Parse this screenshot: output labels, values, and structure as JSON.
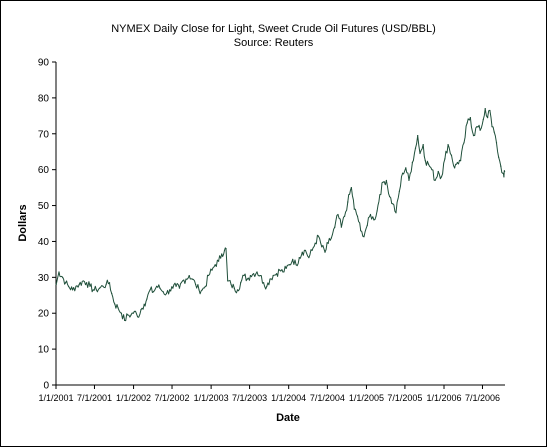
{
  "chart_data": {
    "type": "line",
    "title": "NYMEX Daily Close for Light, Sweet Crude Oil Futures (USD/BBL)",
    "subtitle": "Source: Reuters",
    "xlabel": "Date",
    "ylabel": "Dollars",
    "ylim": [
      0,
      90
    ],
    "xlim": [
      "2001-01-01",
      "2006-10-15"
    ],
    "y_ticks": [
      0,
      10,
      20,
      30,
      40,
      50,
      60,
      70,
      80,
      90
    ],
    "x_ticks": [
      {
        "date": "2001-01-01",
        "label": "1/1/2001"
      },
      {
        "date": "2001-07-01",
        "label": "7/1/2001"
      },
      {
        "date": "2002-01-01",
        "label": "1/1/2002"
      },
      {
        "date": "2002-07-01",
        "label": "7/1/2002"
      },
      {
        "date": "2003-01-01",
        "label": "1/1/2003"
      },
      {
        "date": "2003-07-01",
        "label": "7/1/2003"
      },
      {
        "date": "2004-01-01",
        "label": "1/1/2004"
      },
      {
        "date": "2004-07-01",
        "label": "7/1/2004"
      },
      {
        "date": "2005-01-01",
        "label": "1/1/2005"
      },
      {
        "date": "2005-07-01",
        "label": "7/1/2005"
      },
      {
        "date": "2006-01-01",
        "label": "1/1/2006"
      },
      {
        "date": "2006-07-01",
        "label": "7/1/2006"
      }
    ],
    "grid": false,
    "legend": "none",
    "series": [
      {
        "color": "#1f4f3a",
        "points": [
          [
            "2001-01-02",
            28.0
          ],
          [
            "2001-01-15",
            31.5
          ],
          [
            "2001-02-01",
            30.0
          ],
          [
            "2001-02-15",
            28.5
          ],
          [
            "2001-03-01",
            27.5
          ],
          [
            "2001-03-20",
            26.5
          ],
          [
            "2001-04-05",
            27.5
          ],
          [
            "2001-04-20",
            28.0
          ],
          [
            "2001-05-10",
            29.0
          ],
          [
            "2001-05-25",
            28.5
          ],
          [
            "2001-06-10",
            27.5
          ],
          [
            "2001-06-25",
            26.5
          ],
          [
            "2001-07-10",
            26.5
          ],
          [
            "2001-07-25",
            27.0
          ],
          [
            "2001-08-10",
            27.5
          ],
          [
            "2001-08-25",
            28.0
          ],
          [
            "2001-09-10",
            28.5
          ],
          [
            "2001-09-20",
            25.5
          ],
          [
            "2001-10-05",
            22.5
          ],
          [
            "2001-10-20",
            21.5
          ],
          [
            "2001-11-05",
            20.0
          ],
          [
            "2001-11-20",
            18.0
          ],
          [
            "2001-12-05",
            19.5
          ],
          [
            "2001-12-20",
            19.5
          ],
          [
            "2002-01-05",
            20.5
          ],
          [
            "2002-01-20",
            19.0
          ],
          [
            "2002-02-05",
            21.0
          ],
          [
            "2002-02-20",
            22.5
          ],
          [
            "2002-03-05",
            24.0
          ],
          [
            "2002-03-20",
            26.5
          ],
          [
            "2002-04-05",
            26.0
          ],
          [
            "2002-04-20",
            27.5
          ],
          [
            "2002-05-05",
            27.0
          ],
          [
            "2002-05-20",
            26.0
          ],
          [
            "2002-06-05",
            25.5
          ],
          [
            "2002-06-20",
            26.5
          ],
          [
            "2002-07-05",
            27.0
          ],
          [
            "2002-07-20",
            27.5
          ],
          [
            "2002-08-05",
            27.0
          ],
          [
            "2002-08-20",
            29.0
          ],
          [
            "2002-09-05",
            29.5
          ],
          [
            "2002-09-20",
            30.5
          ],
          [
            "2002-10-05",
            29.5
          ],
          [
            "2002-10-20",
            28.0
          ],
          [
            "2002-11-05",
            26.5
          ],
          [
            "2002-11-20",
            26.5
          ],
          [
            "2002-12-05",
            27.5
          ],
          [
            "2002-12-20",
            30.5
          ],
          [
            "2003-01-05",
            32.0
          ],
          [
            "2003-01-20",
            33.5
          ],
          [
            "2003-02-05",
            34.5
          ],
          [
            "2003-02-20",
            36.5
          ],
          [
            "2003-03-05",
            37.5
          ],
          [
            "2003-03-12",
            38.0
          ],
          [
            "2003-03-20",
            29.0
          ],
          [
            "2003-04-05",
            28.0
          ],
          [
            "2003-04-20",
            27.0
          ],
          [
            "2003-05-05",
            26.5
          ],
          [
            "2003-05-20",
            28.5
          ],
          [
            "2003-06-05",
            30.5
          ],
          [
            "2003-06-20",
            29.5
          ],
          [
            "2003-07-05",
            30.5
          ],
          [
            "2003-07-20",
            31.0
          ],
          [
            "2003-08-05",
            31.5
          ],
          [
            "2003-08-20",
            30.5
          ],
          [
            "2003-09-05",
            28.5
          ],
          [
            "2003-09-20",
            27.5
          ],
          [
            "2003-10-05",
            29.5
          ],
          [
            "2003-10-20",
            30.5
          ],
          [
            "2003-11-05",
            31.0
          ],
          [
            "2003-11-20",
            32.0
          ],
          [
            "2003-12-05",
            31.5
          ],
          [
            "2003-12-20",
            32.5
          ],
          [
            "2004-01-05",
            33.5
          ],
          [
            "2004-01-20",
            35.0
          ],
          [
            "2004-02-05",
            33.5
          ],
          [
            "2004-02-20",
            35.5
          ],
          [
            "2004-03-05",
            37.0
          ],
          [
            "2004-03-20",
            37.5
          ],
          [
            "2004-04-05",
            35.5
          ],
          [
            "2004-04-20",
            37.5
          ],
          [
            "2004-05-05",
            39.5
          ],
          [
            "2004-05-20",
            41.5
          ],
          [
            "2004-06-05",
            38.5
          ],
          [
            "2004-06-20",
            37.0
          ],
          [
            "2004-07-05",
            39.5
          ],
          [
            "2004-07-20",
            41.0
          ],
          [
            "2004-08-05",
            44.0
          ],
          [
            "2004-08-20",
            47.5
          ],
          [
            "2004-09-05",
            44.0
          ],
          [
            "2004-09-20",
            47.0
          ],
          [
            "2004-10-05",
            51.0
          ],
          [
            "2004-10-22",
            55.0
          ],
          [
            "2004-11-05",
            49.0
          ],
          [
            "2004-11-20",
            47.0
          ],
          [
            "2004-12-05",
            43.0
          ],
          [
            "2004-12-15",
            41.5
          ],
          [
            "2005-01-05",
            44.5
          ],
          [
            "2005-01-20",
            47.5
          ],
          [
            "2005-02-05",
            46.0
          ],
          [
            "2005-02-20",
            48.5
          ],
          [
            "2005-03-05",
            53.0
          ],
          [
            "2005-03-20",
            56.5
          ],
          [
            "2005-04-05",
            57.0
          ],
          [
            "2005-04-20",
            52.5
          ],
          [
            "2005-05-05",
            50.5
          ],
          [
            "2005-05-20",
            48.0
          ],
          [
            "2005-06-05",
            54.0
          ],
          [
            "2005-06-20",
            59.0
          ],
          [
            "2005-07-05",
            60.5
          ],
          [
            "2005-07-20",
            57.0
          ],
          [
            "2005-08-05",
            62.0
          ],
          [
            "2005-08-20",
            66.0
          ],
          [
            "2005-08-30",
            69.5
          ],
          [
            "2005-09-10",
            64.5
          ],
          [
            "2005-09-25",
            67.0
          ],
          [
            "2005-10-05",
            62.5
          ],
          [
            "2005-10-20",
            61.5
          ],
          [
            "2005-11-05",
            60.0
          ],
          [
            "2005-11-20",
            57.0
          ],
          [
            "2005-12-05",
            59.5
          ],
          [
            "2005-12-20",
            58.0
          ],
          [
            "2006-01-05",
            63.0
          ],
          [
            "2006-01-20",
            67.0
          ],
          [
            "2006-02-05",
            64.0
          ],
          [
            "2006-02-20",
            60.5
          ],
          [
            "2006-03-05",
            62.0
          ],
          [
            "2006-03-20",
            62.5
          ],
          [
            "2006-04-05",
            67.5
          ],
          [
            "2006-04-20",
            73.0
          ],
          [
            "2006-05-05",
            74.5
          ],
          [
            "2006-05-20",
            69.5
          ],
          [
            "2006-06-05",
            72.0
          ],
          [
            "2006-06-20",
            71.0
          ],
          [
            "2006-07-05",
            74.0
          ],
          [
            "2006-07-14",
            77.0
          ],
          [
            "2006-07-25",
            74.5
          ],
          [
            "2006-08-05",
            76.5
          ],
          [
            "2006-08-15",
            72.0
          ],
          [
            "2006-08-25",
            70.5
          ],
          [
            "2006-09-05",
            67.5
          ],
          [
            "2006-09-15",
            63.5
          ],
          [
            "2006-09-25",
            61.0
          ],
          [
            "2006-10-05",
            59.0
          ],
          [
            "2006-10-10",
            58.0
          ],
          [
            "2006-10-13",
            59.5
          ]
        ]
      }
    ]
  }
}
